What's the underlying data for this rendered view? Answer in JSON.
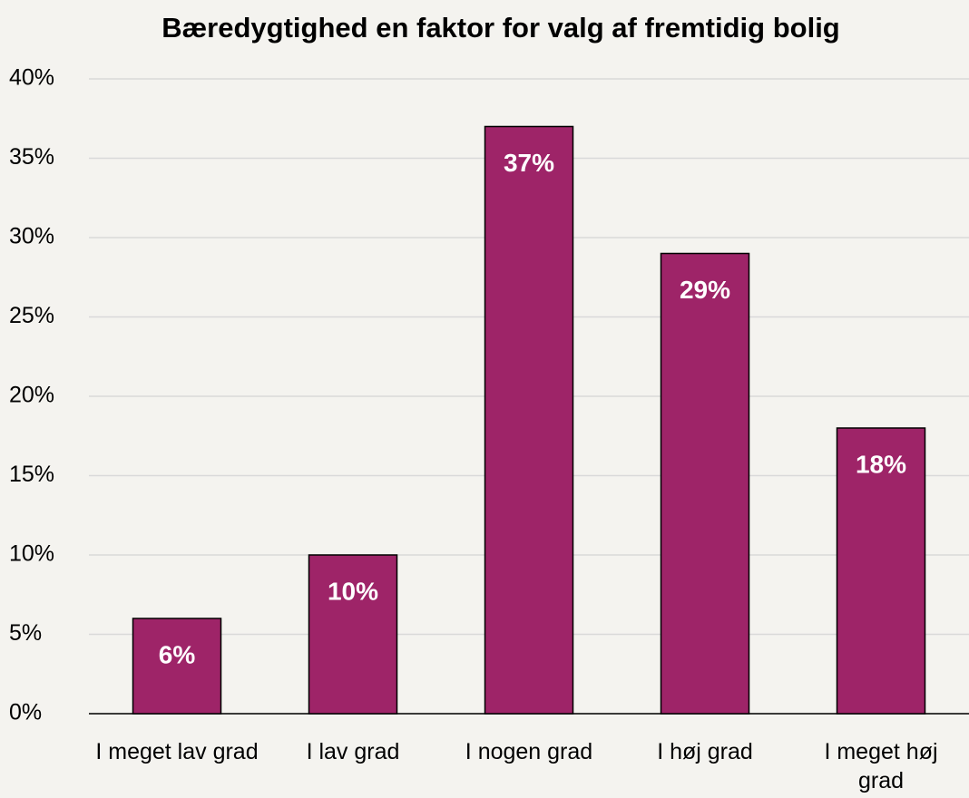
{
  "chart_data": {
    "type": "bar",
    "title": "Bæredygtighed en faktor for valg af fremtidig bolig",
    "categories": [
      "I meget lav grad",
      "I lav grad",
      "I nogen grad",
      "I høj grad",
      "I meget høj grad"
    ],
    "values": [
      6,
      10,
      37,
      29,
      18
    ],
    "value_labels": [
      "6%",
      "10%",
      "37%",
      "29%",
      "18%"
    ],
    "color": "#9e2468",
    "ylim": [
      0,
      40
    ],
    "yticks": [
      {
        "value": 0,
        "label": "0%"
      },
      {
        "value": 5,
        "label": "5%"
      },
      {
        "value": 10,
        "label": "10%"
      },
      {
        "value": 15,
        "label": "15%"
      },
      {
        "value": 20,
        "label": "20%"
      },
      {
        "value": 25,
        "label": "25%"
      },
      {
        "value": 30,
        "label": "30%"
      },
      {
        "value": 35,
        "label": "35%"
      },
      {
        "value": 40,
        "label": "40%"
      }
    ],
    "grid": true
  }
}
